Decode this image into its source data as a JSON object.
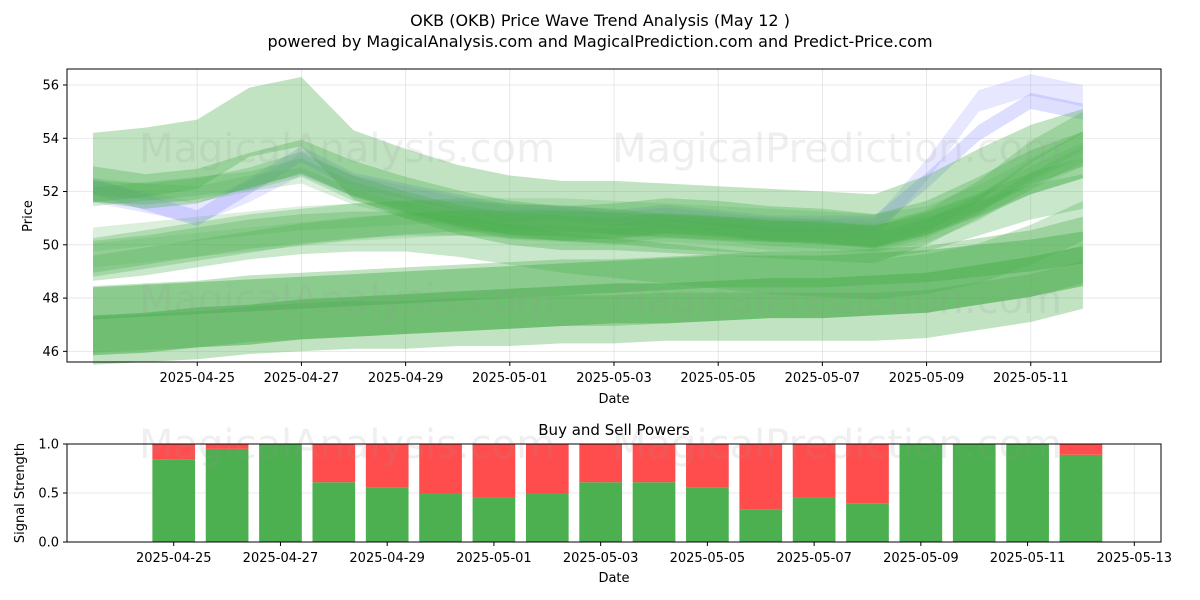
{
  "figure": {
    "title": "OKB (OKB) Price Wave Trend Analysis (May 12 )",
    "subtitle": "powered by MagicalAnalysis.com and MagicalPrediction.com and Predict-Price.com",
    "watermarks": [
      "MagicalAnalysis.com",
      "MagicalPrediction.com"
    ]
  },
  "chart_data": [
    {
      "type": "area",
      "title": "",
      "xlabel": "Date",
      "ylabel": "Price",
      "xlim": [
        "2025-04-22T12:00",
        "2025-05-13T12:00"
      ],
      "ylim": [
        45.6,
        56.6
      ],
      "xticks": [
        "2025-04-25",
        "2025-04-27",
        "2025-04-29",
        "2025-05-01",
        "2025-05-03",
        "2025-05-05",
        "2025-05-07",
        "2025-05-09",
        "2025-05-11"
      ],
      "yticks": [
        46,
        48,
        50,
        52,
        54,
        56
      ],
      "grid": true,
      "colors": {
        "green": "#4caf50",
        "blue": "#7b7bff"
      },
      "dates": [
        "2025-04-23",
        "2025-04-24",
        "2025-04-25",
        "2025-04-26",
        "2025-04-27",
        "2025-04-28",
        "2025-04-29",
        "2025-04-30",
        "2025-05-01",
        "2025-05-02",
        "2025-05-03",
        "2025-05-04",
        "2025-05-05",
        "2025-05-06",
        "2025-05-07",
        "2025-05-08",
        "2025-05-09",
        "2025-05-10",
        "2025-05-11",
        "2025-05-12"
      ],
      "series": [
        {
          "color": "blue",
          "alpha": 0.25,
          "width": 0.6,
          "values": [
            52.2,
            51.6,
            51.0,
            52.2,
            53.4,
            52.4,
            52.0,
            51.6,
            51.2,
            51.2,
            51.0,
            51.2,
            51.0,
            50.8,
            50.8,
            50.8,
            52.4,
            54.2,
            55.4,
            55.0
          ]
        },
        {
          "color": "blue",
          "alpha": 0.18,
          "width": 0.8,
          "values": [
            52.0,
            51.6,
            51.2,
            52.0,
            53.0,
            52.2,
            51.8,
            51.4,
            51.0,
            51.0,
            50.8,
            51.0,
            50.8,
            50.6,
            50.6,
            50.6,
            52.8,
            55.4,
            56.0,
            55.6
          ]
        },
        {
          "color": "green",
          "alpha": 0.35,
          "width": 2.6,
          "values": [
            52.9,
            53.1,
            53.4,
            54.6,
            55.0,
            53.0,
            52.3,
            51.7,
            51.3,
            51.1,
            51.1,
            51.0,
            50.9,
            50.8,
            50.7,
            50.6,
            51.3,
            52.3,
            53.2,
            53.8
          ]
        },
        {
          "color": "green",
          "alpha": 0.35,
          "width": 1.3,
          "values": [
            52.3,
            52.0,
            52.2,
            52.8,
            53.3,
            52.5,
            51.9,
            51.4,
            51.0,
            50.8,
            50.9,
            51.1,
            51.0,
            50.8,
            50.7,
            50.5,
            51.0,
            51.9,
            52.9,
            53.6
          ]
        },
        {
          "color": "green",
          "alpha": 0.3,
          "width": 0.8,
          "values": [
            52.0,
            51.9,
            52.1,
            52.5,
            53.1,
            52.2,
            51.6,
            51.1,
            50.8,
            50.7,
            50.6,
            50.8,
            50.7,
            50.5,
            50.5,
            50.3,
            50.9,
            52.0,
            53.5,
            54.6
          ]
        },
        {
          "color": "green",
          "alpha": 0.25,
          "width": 0.7,
          "values": [
            51.8,
            52.0,
            52.2,
            52.4,
            52.9,
            52.0,
            51.5,
            51.0,
            50.6,
            50.5,
            50.4,
            50.6,
            50.5,
            50.3,
            50.2,
            50.1,
            50.6,
            51.5,
            52.8,
            53.9
          ]
        },
        {
          "color": "green",
          "alpha": 0.2,
          "width": 0.6,
          "values": [
            52.2,
            52.0,
            51.9,
            52.3,
            52.6,
            51.8,
            51.3,
            50.9,
            50.5,
            50.4,
            50.3,
            50.4,
            50.3,
            50.1,
            50.0,
            50.0,
            50.4,
            51.2,
            52.4,
            53.4
          ]
        },
        {
          "color": "green",
          "alpha": 0.2,
          "width": 0.9,
          "values": [
            50.2,
            50.4,
            50.6,
            50.8,
            51.0,
            51.1,
            51.2,
            51.3,
            51.3,
            51.3,
            51.2,
            51.1,
            51.0,
            50.9,
            50.8,
            50.7,
            51.0,
            51.8,
            52.8,
            53.8
          ]
        },
        {
          "color": "green",
          "alpha": 0.18,
          "width": 0.9,
          "values": [
            49.6,
            49.8,
            50.0,
            50.2,
            50.4,
            50.6,
            50.7,
            50.8,
            50.8,
            50.8,
            50.8,
            50.7,
            50.6,
            50.6,
            50.5,
            50.4,
            50.8,
            51.5,
            52.5,
            53.4
          ]
        },
        {
          "color": "green",
          "alpha": 0.3,
          "width": 0.8,
          "values": [
            49.2,
            49.5,
            49.8,
            50.1,
            50.4,
            50.6,
            50.8,
            50.9,
            50.9,
            50.9,
            50.8,
            50.7,
            50.6,
            50.5,
            50.4,
            50.3,
            50.8,
            51.5,
            52.3,
            52.9
          ]
        },
        {
          "color": "green",
          "alpha": 0.3,
          "width": 1.3,
          "values": [
            49.6,
            49.9,
            50.2,
            50.5,
            50.7,
            50.9,
            51.0,
            51.0,
            50.9,
            50.8,
            50.7,
            50.5,
            50.4,
            50.3,
            50.2,
            50.1,
            50.4,
            51.0,
            51.6,
            52.0
          ]
        },
        {
          "color": "green",
          "alpha": 0.3,
          "width": 1.5,
          "values": [
            49.4,
            49.6,
            49.9,
            50.2,
            50.4,
            50.5,
            50.5,
            50.3,
            50.0,
            49.7,
            49.5,
            49.3,
            49.1,
            48.9,
            48.8,
            48.7,
            48.9,
            49.3,
            50.0,
            50.9
          ]
        },
        {
          "color": "green",
          "alpha": 0.45,
          "width": 1.2,
          "values": [
            47.8,
            47.9,
            48.0,
            48.1,
            48.2,
            48.3,
            48.4,
            48.5,
            48.6,
            48.7,
            48.8,
            48.9,
            49.0,
            49.0,
            49.0,
            49.1,
            49.2,
            49.4,
            49.6,
            49.9
          ]
        },
        {
          "color": "green",
          "alpha": 0.35,
          "width": 2.5,
          "values": [
            47.2,
            47.3,
            47.4,
            47.6,
            47.7,
            47.8,
            47.9,
            48.0,
            48.1,
            48.2,
            48.2,
            48.3,
            48.4,
            48.5,
            48.5,
            48.6,
            48.7,
            49.0,
            49.3,
            49.8
          ]
        },
        {
          "color": "green",
          "alpha": 0.55,
          "width": 1.5,
          "values": [
            46.6,
            46.7,
            46.9,
            47.0,
            47.2,
            47.3,
            47.4,
            47.5,
            47.6,
            47.7,
            47.8,
            47.8,
            47.9,
            48.0,
            48.0,
            48.1,
            48.2,
            48.5,
            48.8,
            49.2
          ]
        },
        {
          "color": "green",
          "alpha": 0.35,
          "width": 1.8,
          "values": [
            46.4,
            46.5,
            46.6,
            46.8,
            46.9,
            47.0,
            47.0,
            47.1,
            47.1,
            47.2,
            47.2,
            47.3,
            47.3,
            47.3,
            47.3,
            47.3,
            47.4,
            47.7,
            48.0,
            48.5
          ]
        }
      ]
    },
    {
      "type": "bar",
      "title": "Buy and Sell Powers",
      "xlabel": "Date",
      "ylabel": "Signal Strength",
      "xlim": [
        "2025-04-23T00:00",
        "2025-05-13T12:00"
      ],
      "ylim": [
        0,
        1
      ],
      "xticks": [
        "2025-04-25",
        "2025-04-27",
        "2025-04-29",
        "2025-05-01",
        "2025-05-03",
        "2025-05-05",
        "2025-05-07",
        "2025-05-09",
        "2025-05-11",
        "2025-05-13"
      ],
      "yticks": [
        "0.0",
        "0.5",
        "1.0"
      ],
      "grid": true,
      "colors": {
        "buy": "#4caf50",
        "sell": "#ff4d4d"
      },
      "categories": [
        "2025-04-25",
        "2025-04-26",
        "2025-04-27",
        "2025-04-28",
        "2025-04-29",
        "2025-04-30",
        "2025-05-01",
        "2025-05-02",
        "2025-05-03",
        "2025-05-04",
        "2025-05-05",
        "2025-05-06",
        "2025-05-07",
        "2025-05-08",
        "2025-05-09",
        "2025-05-10",
        "2025-05-11",
        "2025-05-12"
      ],
      "series": [
        {
          "key": "buy",
          "values": [
            0.84,
            0.95,
            1.0,
            0.61,
            0.56,
            0.5,
            0.45,
            0.5,
            0.61,
            0.61,
            0.56,
            0.33,
            0.45,
            0.39,
            1.0,
            1.0,
            1.0,
            0.89
          ]
        },
        {
          "key": "sell",
          "values": [
            0.16,
            0.05,
            0.0,
            0.39,
            0.44,
            0.5,
            0.55,
            0.5,
            0.39,
            0.39,
            0.44,
            0.67,
            0.55,
            0.61,
            0.0,
            0.0,
            0.0,
            0.11
          ]
        }
      ]
    }
  ]
}
